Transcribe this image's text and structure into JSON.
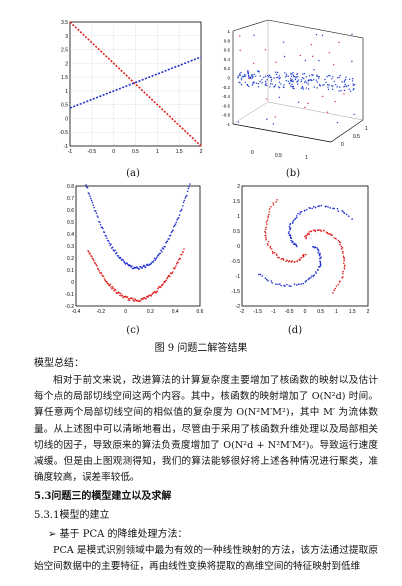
{
  "figure": {
    "subfig_labels": [
      "(a)",
      "(b)",
      "(c)",
      "(d)"
    ],
    "caption": "图 9   问题二解答结果",
    "a": {
      "xticks": [
        "-1",
        "-0.5",
        "0",
        "0.5",
        "1",
        "1.5",
        "2"
      ],
      "yticks": [
        "3.5",
        "3",
        "2.5",
        "2",
        "1.5",
        "1",
        "0.5",
        "0",
        "-0.5",
        "-1"
      ]
    },
    "b": {
      "zticks": [
        "1",
        "0.8",
        "0.6",
        "0.4",
        "0.2",
        "0",
        "-0.2",
        "-0.4",
        "-0.6",
        "-0.8",
        "-1"
      ],
      "xticks": [
        "0",
        "0.5",
        "1"
      ],
      "yticks": [
        "0",
        "0.5",
        "1"
      ]
    },
    "c": {
      "xticks": [
        "-0.4",
        "-0.2",
        "0",
        "0.2",
        "0.4",
        "0.6"
      ],
      "yticks": [
        "0.8",
        "0.7",
        "0.6",
        "0.5",
        "0.4",
        "0.3",
        "0.2",
        "0.1",
        "0",
        "-0.1",
        "-0.2"
      ]
    },
    "d": {
      "xticks": [
        "-2",
        "-1.5",
        "-1",
        "-0.5",
        "0",
        "0.5",
        "1",
        "1.5",
        "2"
      ],
      "yticks": [
        "2",
        "1.5",
        "1",
        "0.5",
        "0",
        "-0.5",
        "-1",
        "-1.5",
        "-2"
      ]
    }
  },
  "summary_title": "模型总结：",
  "summary_body": "相对于前文来说，改进算法的计算复杂度主要增加了核函数的映射以及估计每个点的局部切线空间这两个内容。其中，核函数的映射增加了 O(N²d) 时间。算任意两个局部切线空间的相似值的复杂度为 O(N²M′M²)，其中 M′ 为流体数量。从上述图中可以清晰地看出，尽管由于采用了核函数升维处理以及局部相关切线的因子，导致原来的算法负责度增加了 O(N²d + N²M′M²)。导致运行速度减缓。但是由上图观测得知，我们的算法能够很好将上述各种情况进行聚类，准确度较高，误差率较低。",
  "section_title": "5.3问题三的模型建立以及求解",
  "subsection_title": "5.3.1模型的建立",
  "bullet": "➢ 基于 PCA 的降维处理方法：",
  "pca_para": "PCA 是模式识别领域中最为有效的一种线性映射的方法，该方法通过提取原始空间数据中的主要特征，再由线性变换将提取的高维空间的特征映射到低维"
}
